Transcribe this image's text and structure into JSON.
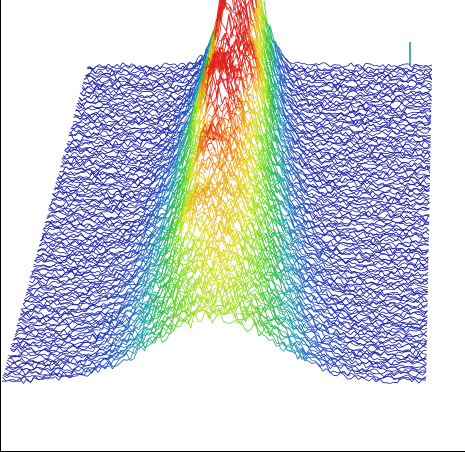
{
  "figure": {
    "kind": "3d-waterfall-wireframe",
    "colormap": [
      "#1a1aa6",
      "#2050c8",
      "#20a0b0",
      "#30c040",
      "#80dd20",
      "#e0e020",
      "#f0a020",
      "#e02020"
    ],
    "background": "#ffffff",
    "frame_line_color": "#000000",
    "peak_marker_color": "#208a8a"
  }
}
